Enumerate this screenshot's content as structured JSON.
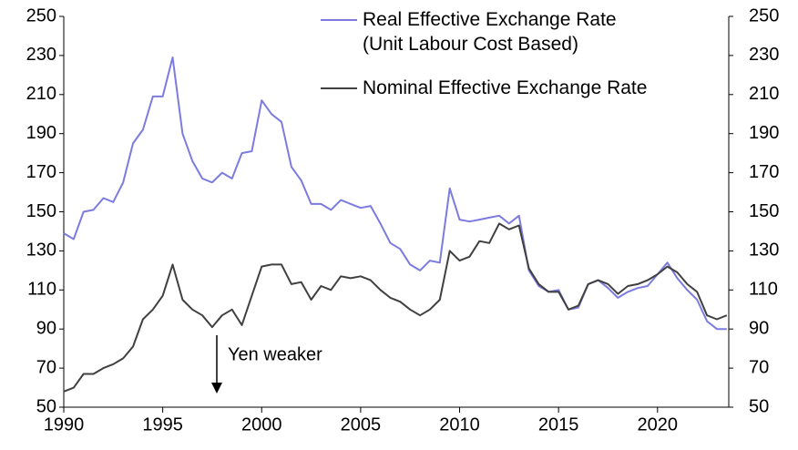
{
  "chart_data": {
    "type": "line",
    "x": [
      1990.0,
      1990.5,
      1991.0,
      1991.5,
      1992.0,
      1992.5,
      1993.0,
      1993.5,
      1994.0,
      1994.5,
      1995.0,
      1995.5,
      1996.0,
      1996.5,
      1997.0,
      1997.5,
      1998.0,
      1998.5,
      1999.0,
      1999.5,
      2000.0,
      2000.5,
      2001.0,
      2001.5,
      2002.0,
      2002.5,
      2003.0,
      2003.5,
      2004.0,
      2004.5,
      2005.0,
      2005.5,
      2006.0,
      2006.5,
      2007.0,
      2007.5,
      2008.0,
      2008.5,
      2009.0,
      2009.5,
      2010.0,
      2010.5,
      2011.0,
      2011.5,
      2012.0,
      2012.5,
      2013.0,
      2013.5,
      2014.0,
      2014.5,
      2015.0,
      2015.5,
      2016.0,
      2016.5,
      2017.0,
      2017.5,
      2018.0,
      2018.5,
      2019.0,
      2019.5,
      2020.0,
      2020.5,
      2021.0,
      2021.5,
      2022.0,
      2022.5,
      2023.0,
      2023.5
    ],
    "series": [
      {
        "name": "Real Effective Exchange Rate (Unit Labour Cost Based)",
        "color": "#7b7be0",
        "values": [
          139,
          136,
          150,
          151,
          157,
          155,
          165,
          185,
          192,
          209,
          209,
          229,
          190,
          176,
          167,
          165,
          170,
          167,
          180,
          181,
          207,
          200,
          196,
          173,
          166,
          154,
          154,
          151,
          156,
          154,
          152,
          153,
          144,
          134,
          131,
          123,
          120,
          125,
          124,
          162,
          146,
          145,
          146,
          147,
          148,
          144,
          148,
          120,
          112,
          109,
          110,
          100,
          101,
          113,
          115,
          111,
          106,
          109,
          111,
          112,
          118,
          124,
          116,
          110,
          105,
          94,
          90,
          90
        ]
      },
      {
        "name": "Nominal Effective Exchange Rate",
        "color": "#404040",
        "values": [
          58,
          60,
          67,
          67,
          70,
          72,
          75,
          81,
          95,
          100,
          107,
          123,
          105,
          100,
          97,
          91,
          97,
          100,
          92,
          107,
          122,
          123,
          123,
          113,
          114,
          105,
          112,
          110,
          117,
          116,
          117,
          115,
          110,
          106,
          104,
          100,
          97,
          100,
          105,
          130,
          125,
          127,
          135,
          134,
          144,
          141,
          143,
          121,
          113,
          109,
          109,
          100,
          102,
          113,
          115,
          113,
          108,
          112,
          113,
          115,
          118,
          122,
          119,
          113,
          109,
          97,
          95,
          97
        ]
      }
    ],
    "xlim": [
      1990,
      2023.6
    ],
    "xticks": [
      1990,
      1995,
      2000,
      2005,
      2010,
      2015,
      2020
    ],
    "ylim": [
      50,
      250
    ],
    "yticks": [
      50,
      70,
      90,
      110,
      130,
      150,
      170,
      190,
      210,
      230,
      250
    ],
    "y2lim": [
      50,
      250
    ],
    "y2ticks": [
      50,
      70,
      90,
      110,
      130,
      150,
      170,
      190,
      210,
      230,
      250
    ],
    "annotation": "Yen weaker"
  }
}
